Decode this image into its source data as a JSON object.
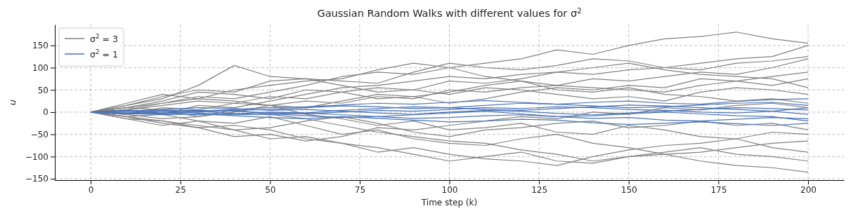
{
  "chart_data": {
    "type": "line",
    "title": "Gaussian Random Walks with different values for σ$^{2}$",
    "xlabel": "Time step (k)",
    "ylabel": "u",
    "x": [
      0,
      10,
      20,
      30,
      40,
      50,
      60,
      70,
      80,
      90,
      100,
      110,
      120,
      130,
      140,
      150,
      160,
      170,
      180,
      190,
      200
    ],
    "xlim": [
      -10,
      210
    ],
    "ylim": [
      -153,
      197
    ],
    "xticks": [
      0,
      25,
      50,
      75,
      100,
      125,
      150,
      175,
      200
    ],
    "yticks": [
      -150,
      -100,
      -50,
      0,
      50,
      100,
      150
    ],
    "grid": true,
    "legend": "top left",
    "series": [
      {
        "name": "σ$^{2}$ = 3",
        "color": "#808080",
        "values": [
          0,
          10,
          20,
          35,
          30,
          45,
          60,
          80,
          90,
          85,
          100,
          110,
          120,
          140,
          130,
          150,
          165,
          170,
          180,
          165,
          155
        ]
      },
      {
        "color": "#808080",
        "values": [
          0,
          15,
          30,
          60,
          105,
          80,
          75,
          70,
          65,
          90,
          110,
          100,
          95,
          105,
          120,
          115,
          100,
          95,
          110,
          115,
          125
        ]
      },
      {
        "color": "#808080",
        "values": [
          0,
          -10,
          -25,
          -35,
          -30,
          -40,
          -60,
          -70,
          -80,
          -95,
          -110,
          -100,
          -90,
          -110,
          -115,
          -100,
          -95,
          -110,
          -120,
          -125,
          -135
        ]
      },
      {
        "color": "#808080",
        "values": [
          0,
          5,
          -5,
          -20,
          -40,
          -60,
          -55,
          -70,
          -90,
          -80,
          -95,
          -105,
          -110,
          -120,
          -100,
          -85,
          -75,
          -70,
          -60,
          -80,
          -90
        ]
      },
      {
        "color": "#808080",
        "values": [
          0,
          20,
          40,
          30,
          50,
          60,
          70,
          75,
          95,
          110,
          100,
          80,
          70,
          60,
          55,
          50,
          45,
          60,
          70,
          80,
          90
        ]
      },
      {
        "color": "#808080",
        "values": [
          0,
          -15,
          -30,
          -20,
          -25,
          -10,
          -30,
          -50,
          -40,
          -60,
          -70,
          -75,
          -60,
          -50,
          -70,
          -80,
          -95,
          -90,
          -80,
          -70,
          -65
        ]
      },
      {
        "color": "#808080",
        "values": [
          0,
          10,
          25,
          45,
          40,
          30,
          50,
          45,
          30,
          35,
          20,
          30,
          45,
          55,
          50,
          60,
          55,
          75,
          70,
          60,
          75
        ]
      },
      {
        "color": "#808080",
        "values": [
          0,
          -5,
          10,
          5,
          20,
          15,
          -5,
          -15,
          -30,
          -20,
          -40,
          -35,
          -25,
          -45,
          -50,
          -30,
          -40,
          -55,
          -60,
          -45,
          -50
        ]
      },
      {
        "color": "#808080",
        "values": [
          0,
          5,
          15,
          25,
          20,
          35,
          30,
          45,
          55,
          50,
          70,
          65,
          75,
          90,
          85,
          95,
          100,
          110,
          120,
          125,
          150
        ]
      },
      {
        "color": "#808080",
        "values": [
          0,
          -10,
          -20,
          -30,
          -40,
          -35,
          -20,
          -10,
          -25,
          -45,
          -55,
          -40,
          -35,
          -25,
          -20,
          -35,
          -30,
          -20,
          -30,
          -25,
          -40
        ]
      },
      {
        "color": "#808080",
        "values": [
          0,
          15,
          35,
          50,
          45,
          70,
          75,
          60,
          45,
          50,
          40,
          55,
          50,
          40,
          30,
          35,
          25,
          45,
          55,
          50,
          40
        ]
      },
      {
        "color": "#808080",
        "values": [
          0,
          -15,
          -20,
          -35,
          -55,
          -50,
          -65,
          -55,
          -35,
          -40,
          -30,
          -20,
          -10,
          -15,
          0,
          -5,
          10,
          5,
          15,
          20,
          10
        ]
      },
      {
        "color": "#808080",
        "values": [
          0,
          10,
          5,
          -10,
          0,
          15,
          25,
          20,
          35,
          30,
          50,
          45,
          55,
          60,
          75,
          70,
          80,
          90,
          85,
          100,
          120
        ]
      },
      {
        "color": "#808080",
        "values": [
          0,
          -5,
          -15,
          -10,
          5,
          -5,
          -15,
          -30,
          -45,
          -55,
          -65,
          -70,
          -85,
          -95,
          -110,
          -100,
          -90,
          -80,
          -95,
          -100,
          -110
        ]
      },
      {
        "color": "#808080",
        "values": [
          0,
          5,
          20,
          30,
          25,
          15,
          10,
          25,
          40,
          35,
          45,
          60,
          70,
          50,
          45,
          55,
          40,
          35,
          25,
          30,
          20
        ]
      },
      {
        "color": "#808080",
        "values": [
          0,
          -10,
          -5,
          15,
          10,
          25,
          40,
          55,
          60,
          70,
          80,
          75,
          85,
          90,
          100,
          110,
          95,
          85,
          80,
          75,
          55
        ]
      },
      {
        "name": "σ$^{2}$ = 1",
        "color": "#4a72b8",
        "values": [
          0,
          3,
          5,
          2,
          -3,
          -6,
          -2,
          4,
          8,
          12,
          10,
          15,
          20,
          18,
          22,
          25,
          20,
          18,
          24,
          28,
          30
        ]
      },
      {
        "color": "#4a72b8",
        "values": [
          0,
          -3,
          -6,
          -4,
          -8,
          -12,
          -15,
          -10,
          -14,
          -18,
          -22,
          -20,
          -16,
          -18,
          -24,
          -28,
          -25,
          -22,
          -26,
          -30,
          -25
        ]
      },
      {
        "color": "#4a72b8",
        "values": [
          0,
          2,
          6,
          10,
          8,
          4,
          6,
          2,
          -2,
          -5,
          0,
          4,
          2,
          -3,
          -6,
          -2,
          2,
          6,
          10,
          8,
          5
        ]
      },
      {
        "color": "#4a72b8",
        "values": [
          0,
          -2,
          -4,
          0,
          4,
          6,
          10,
          14,
          12,
          8,
          10,
          6,
          4,
          8,
          12,
          16,
          14,
          10,
          6,
          2,
          -5
        ]
      },
      {
        "color": "#4a72b8",
        "values": [
          0,
          4,
          2,
          -2,
          -6,
          -4,
          -8,
          -12,
          -10,
          -6,
          -2,
          2,
          -4,
          -10,
          -14,
          -12,
          -18,
          -20,
          -16,
          -12,
          -15
        ]
      },
      {
        "color": "#4a72b8",
        "values": [
          0,
          -4,
          -2,
          2,
          6,
          10,
          12,
          16,
          20,
          18,
          22,
          26,
          22,
          18,
          14,
          10,
          12,
          16,
          20,
          22,
          15
        ]
      },
      {
        "color": "#4a72b8",
        "values": [
          0,
          2,
          -2,
          -6,
          -4,
          0,
          -2,
          -6,
          -10,
          -14,
          -12,
          -8,
          -6,
          -10,
          -8,
          -4,
          0,
          -4,
          -8,
          -10,
          -20
        ]
      },
      {
        "color": "#4a72b8",
        "values": [
          0,
          -2,
          2,
          4,
          2,
          -2,
          -4,
          0,
          4,
          2,
          6,
          10,
          8,
          12,
          10,
          6,
          4,
          0,
          -2,
          2,
          10
        ]
      }
    ]
  }
}
